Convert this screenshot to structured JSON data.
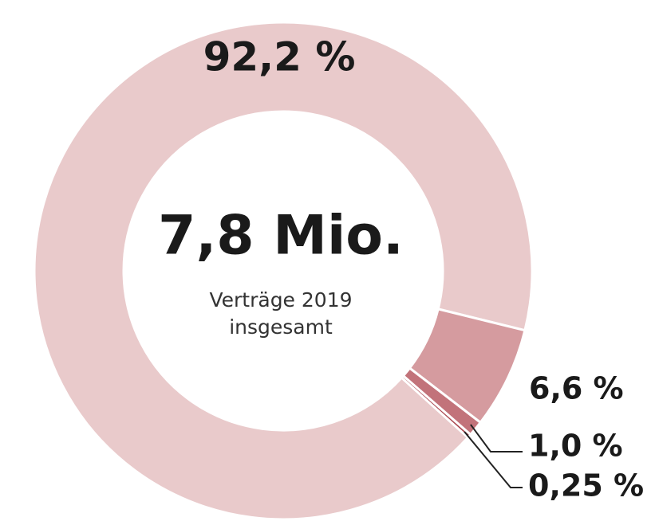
{
  "chart_data": {
    "type": "pie",
    "center_title": "7,8 Mio.",
    "center_subtitle": [
      "Verträge 2019",
      "insgesamt"
    ],
    "values": [
      92.2,
      6.6,
      1.0,
      0.25
    ],
    "value_labels": [
      "92,2 %",
      "6,6 %",
      "1,0 %",
      "0,25 %"
    ],
    "colors": [
      "#e9cacb",
      "#d59b9f",
      "#c2737a",
      "#a9474f"
    ]
  }
}
